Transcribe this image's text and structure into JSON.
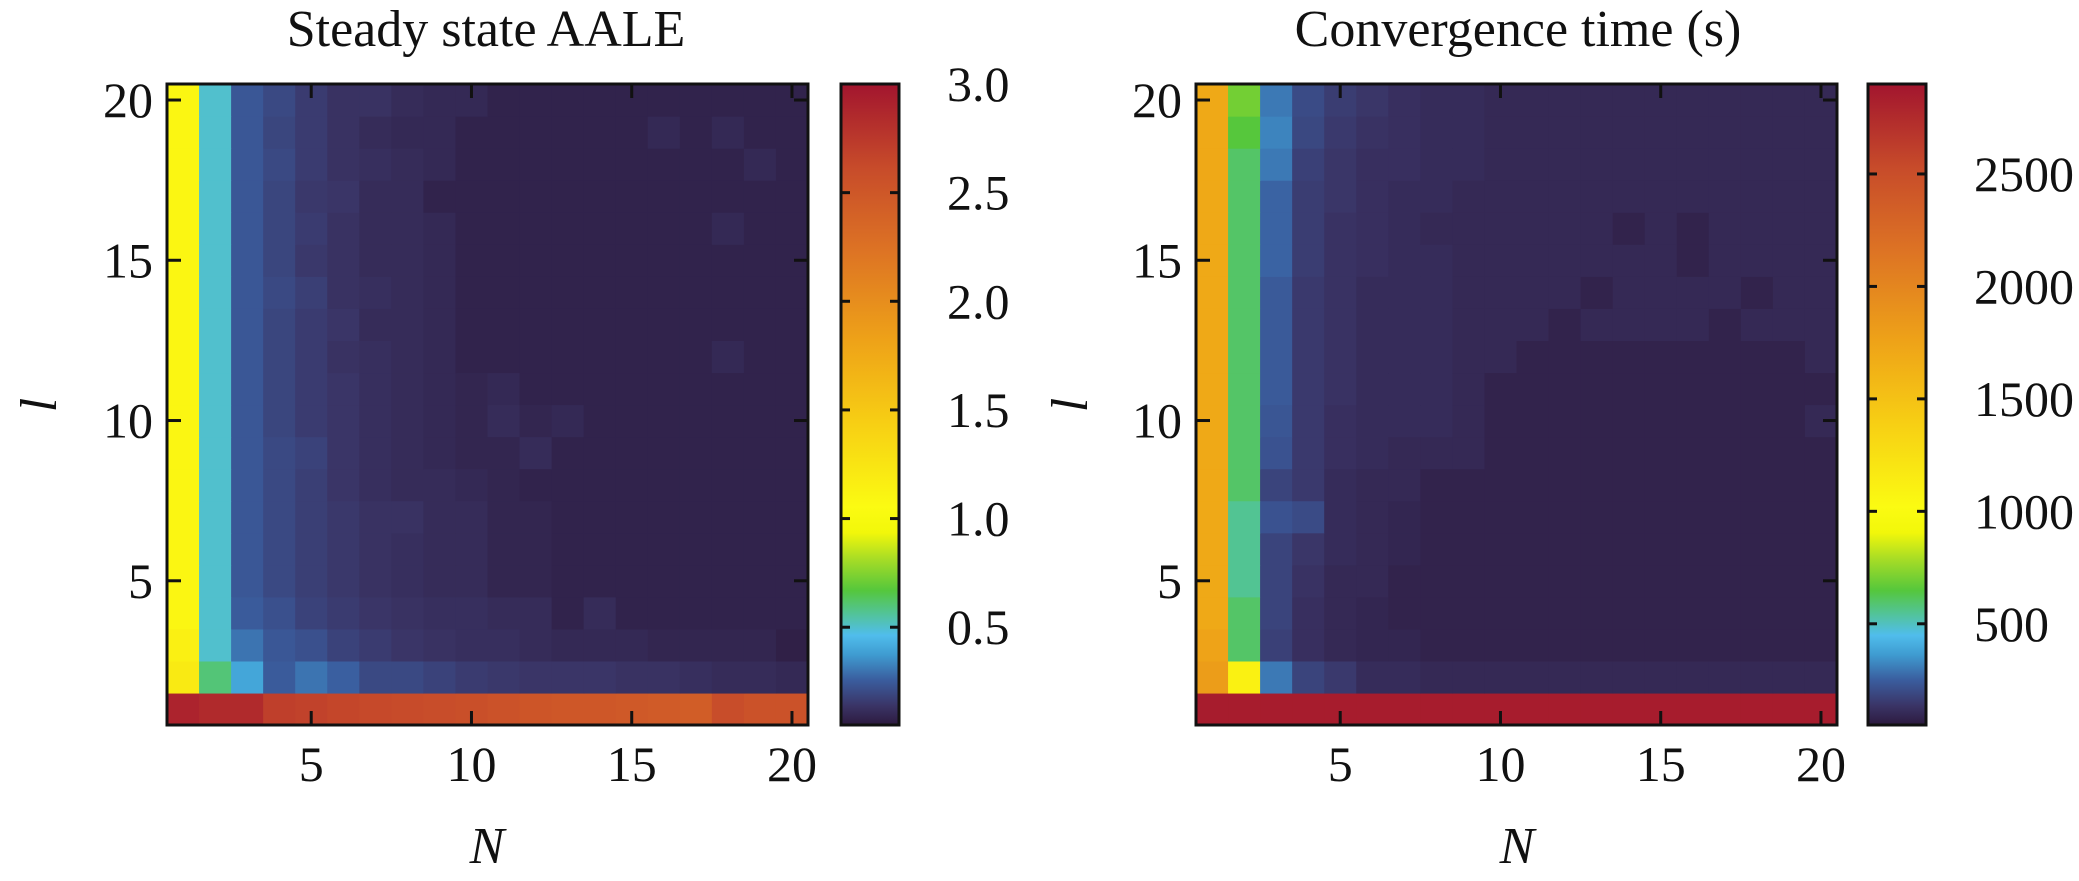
{
  "chart_data": [
    {
      "type": "heatmap",
      "title": "Steady state AALE",
      "xlabel": "N",
      "ylabel": "l",
      "x_range": [
        1,
        20
      ],
      "y_range": [
        1,
        20
      ],
      "x_ticks": [
        5,
        10,
        15,
        20
      ],
      "x_tick_labels": [
        "5",
        "10",
        "15",
        "20"
      ],
      "y_ticks": [
        5,
        10,
        15,
        20
      ],
      "y_tick_labels": [
        "5",
        "10",
        "15",
        "20"
      ],
      "colorbar": {
        "min": 0.05,
        "max": 3.0,
        "ticks": [
          0.5,
          1.0,
          1.5,
          2.0,
          2.5,
          3.0
        ],
        "tick_labels": [
          "0.5",
          "1.0",
          "1.5",
          "2.0",
          "2.5",
          "3.0"
        ]
      },
      "grid": false,
      "values_note": "rows indexed by l = 1..20 (first row is l = 1), columns by N = 1..20",
      "values": [
        [
          2.9,
          2.85,
          2.85,
          2.7,
          2.68,
          2.65,
          2.63,
          2.62,
          2.6,
          2.58,
          2.55,
          2.52,
          2.5,
          2.5,
          2.48,
          2.46,
          2.44,
          2.6,
          2.55,
          2.55
        ],
        [
          1.2,
          0.6,
          0.4,
          0.25,
          0.3,
          0.26,
          0.2,
          0.2,
          0.18,
          0.16,
          0.15,
          0.14,
          0.14,
          0.14,
          0.13,
          0.13,
          0.12,
          0.11,
          0.11,
          0.1
        ],
        [
          1.15,
          0.5,
          0.3,
          0.24,
          0.22,
          0.18,
          0.16,
          0.14,
          0.13,
          0.12,
          0.12,
          0.11,
          0.1,
          0.1,
          0.1,
          0.09,
          0.09,
          0.09,
          0.09,
          0.07
        ],
        [
          1.1,
          0.5,
          0.25,
          0.22,
          0.18,
          0.16,
          0.14,
          0.13,
          0.12,
          0.12,
          0.11,
          0.11,
          0.08,
          0.11,
          0.08,
          0.08,
          0.08,
          0.08,
          0.08,
          0.08
        ],
        [
          1.1,
          0.5,
          0.24,
          0.2,
          0.17,
          0.15,
          0.13,
          0.12,
          0.11,
          0.11,
          0.09,
          0.09,
          0.08,
          0.08,
          0.08,
          0.08,
          0.08,
          0.08,
          0.08,
          0.08
        ],
        [
          1.1,
          0.5,
          0.24,
          0.2,
          0.17,
          0.15,
          0.13,
          0.12,
          0.11,
          0.11,
          0.09,
          0.09,
          0.08,
          0.08,
          0.08,
          0.08,
          0.08,
          0.08,
          0.08,
          0.08
        ],
        [
          1.1,
          0.5,
          0.24,
          0.2,
          0.17,
          0.15,
          0.13,
          0.13,
          0.11,
          0.11,
          0.09,
          0.09,
          0.08,
          0.08,
          0.08,
          0.08,
          0.08,
          0.08,
          0.08,
          0.08
        ],
        [
          1.1,
          0.5,
          0.24,
          0.2,
          0.17,
          0.14,
          0.12,
          0.11,
          0.11,
          0.1,
          0.09,
          0.08,
          0.08,
          0.08,
          0.08,
          0.08,
          0.08,
          0.08,
          0.08,
          0.08
        ],
        [
          1.1,
          0.5,
          0.24,
          0.2,
          0.18,
          0.14,
          0.12,
          0.11,
          0.1,
          0.09,
          0.09,
          0.11,
          0.08,
          0.08,
          0.08,
          0.08,
          0.08,
          0.08,
          0.08,
          0.08
        ],
        [
          1.1,
          0.5,
          0.24,
          0.19,
          0.16,
          0.14,
          0.12,
          0.11,
          0.1,
          0.09,
          0.11,
          0.09,
          0.1,
          0.08,
          0.08,
          0.08,
          0.08,
          0.08,
          0.08,
          0.08
        ],
        [
          1.1,
          0.5,
          0.24,
          0.19,
          0.16,
          0.14,
          0.12,
          0.11,
          0.1,
          0.09,
          0.1,
          0.08,
          0.08,
          0.08,
          0.08,
          0.08,
          0.08,
          0.08,
          0.08,
          0.08
        ],
        [
          1.1,
          0.5,
          0.24,
          0.19,
          0.16,
          0.13,
          0.12,
          0.11,
          0.1,
          0.08,
          0.08,
          0.08,
          0.08,
          0.08,
          0.08,
          0.08,
          0.08,
          0.1,
          0.08,
          0.08
        ],
        [
          1.1,
          0.5,
          0.24,
          0.19,
          0.16,
          0.14,
          0.11,
          0.11,
          0.1,
          0.08,
          0.08,
          0.08,
          0.08,
          0.08,
          0.08,
          0.08,
          0.08,
          0.08,
          0.08,
          0.08
        ],
        [
          1.1,
          0.5,
          0.24,
          0.2,
          0.17,
          0.13,
          0.12,
          0.11,
          0.1,
          0.08,
          0.08,
          0.08,
          0.08,
          0.08,
          0.08,
          0.08,
          0.08,
          0.08,
          0.08,
          0.08
        ],
        [
          1.1,
          0.5,
          0.24,
          0.19,
          0.15,
          0.13,
          0.11,
          0.11,
          0.1,
          0.08,
          0.08,
          0.08,
          0.08,
          0.08,
          0.08,
          0.08,
          0.08,
          0.08,
          0.08,
          0.08
        ],
        [
          1.1,
          0.5,
          0.24,
          0.19,
          0.16,
          0.13,
          0.11,
          0.11,
          0.1,
          0.08,
          0.08,
          0.08,
          0.08,
          0.08,
          0.08,
          0.08,
          0.08,
          0.1,
          0.08,
          0.08
        ],
        [
          1.1,
          0.5,
          0.24,
          0.19,
          0.15,
          0.14,
          0.11,
          0.11,
          0.08,
          0.08,
          0.08,
          0.08,
          0.08,
          0.08,
          0.08,
          0.08,
          0.08,
          0.08,
          0.08,
          0.08
        ],
        [
          1.1,
          0.5,
          0.24,
          0.2,
          0.16,
          0.13,
          0.12,
          0.11,
          0.1,
          0.08,
          0.08,
          0.08,
          0.08,
          0.08,
          0.08,
          0.08,
          0.08,
          0.08,
          0.1,
          0.08
        ],
        [
          1.1,
          0.5,
          0.24,
          0.19,
          0.16,
          0.13,
          0.11,
          0.1,
          0.1,
          0.08,
          0.08,
          0.08,
          0.08,
          0.08,
          0.08,
          0.1,
          0.08,
          0.1,
          0.08,
          0.08
        ],
        [
          1.1,
          0.5,
          0.24,
          0.2,
          0.16,
          0.13,
          0.13,
          0.11,
          0.1,
          0.1,
          0.08,
          0.08,
          0.08,
          0.08,
          0.08,
          0.08,
          0.08,
          0.08,
          0.08,
          0.08
        ]
      ]
    },
    {
      "type": "heatmap",
      "title": "Convergence time (s)",
      "xlabel": "N",
      "ylabel": "l",
      "x_range": [
        1,
        20
      ],
      "y_range": [
        1,
        20
      ],
      "x_ticks": [
        5,
        10,
        15,
        20
      ],
      "x_tick_labels": [
        "5",
        "10",
        "15",
        "20"
      ],
      "y_ticks": [
        5,
        10,
        15,
        20
      ],
      "y_tick_labels": [
        "5",
        "10",
        "15",
        "20"
      ],
      "colorbar": {
        "min": 50,
        "max": 2900,
        "ticks": [
          500,
          1000,
          1500,
          2000,
          2500
        ],
        "tick_labels": [
          "500",
          "1000",
          "1500",
          "2000",
          "2500"
        ]
      },
      "grid": false,
      "values_note": "rows indexed by l = 1..20 (first row is l = 1), columns by N = 1..20",
      "values": [
        [
          2850,
          2850,
          2850,
          2850,
          2850,
          2850,
          2850,
          2850,
          2850,
          2850,
          2850,
          2850,
          2850,
          2850,
          2850,
          2850,
          2850,
          2850,
          2850,
          2850
        ],
        [
          1800,
          1100,
          300,
          180,
          150,
          110,
          110,
          100,
          100,
          100,
          100,
          100,
          100,
          100,
          100,
          100,
          100,
          100,
          100,
          100
        ],
        [
          1750,
          600,
          170,
          120,
          100,
          90,
          90,
          80,
          80,
          80,
          80,
          80,
          80,
          80,
          80,
          80,
          80,
          80,
          80,
          80
        ],
        [
          1700,
          600,
          180,
          120,
          100,
          90,
          80,
          80,
          80,
          80,
          80,
          80,
          80,
          80,
          80,
          80,
          80,
          80,
          80,
          80
        ],
        [
          1700,
          550,
          180,
          130,
          100,
          100,
          80,
          80,
          80,
          80,
          80,
          80,
          80,
          80,
          80,
          80,
          80,
          80,
          80,
          80
        ],
        [
          1700,
          550,
          180,
          140,
          110,
          100,
          90,
          80,
          80,
          80,
          80,
          80,
          80,
          80,
          80,
          80,
          80,
          80,
          80,
          80
        ],
        [
          1700,
          550,
          220,
          200,
          110,
          100,
          90,
          80,
          80,
          80,
          80,
          80,
          80,
          80,
          80,
          80,
          80,
          80,
          80,
          80
        ],
        [
          1700,
          600,
          180,
          150,
          110,
          100,
          100,
          80,
          80,
          80,
          80,
          80,
          80,
          80,
          80,
          80,
          80,
          80,
          80,
          80
        ],
        [
          1700,
          600,
          220,
          150,
          120,
          110,
          100,
          100,
          100,
          80,
          80,
          80,
          80,
          80,
          80,
          80,
          80,
          80,
          80,
          80
        ],
        [
          1700,
          600,
          230,
          150,
          120,
          110,
          110,
          110,
          100,
          80,
          80,
          80,
          80,
          80,
          80,
          80,
          80,
          80,
          80,
          100
        ],
        [
          1700,
          600,
          240,
          150,
          130,
          110,
          110,
          110,
          100,
          80,
          80,
          80,
          80,
          80,
          80,
          80,
          80,
          80,
          80,
          80
        ],
        [
          1700,
          600,
          240,
          150,
          130,
          110,
          110,
          110,
          100,
          100,
          80,
          80,
          80,
          80,
          80,
          80,
          80,
          80,
          80,
          100
        ],
        [
          1700,
          600,
          240,
          150,
          130,
          110,
          110,
          110,
          100,
          100,
          100,
          80,
          100,
          100,
          100,
          100,
          80,
          100,
          100,
          100
        ],
        [
          1700,
          600,
          240,
          150,
          130,
          110,
          110,
          110,
          100,
          100,
          100,
          100,
          80,
          100,
          100,
          100,
          100,
          80,
          100,
          100
        ],
        [
          1700,
          600,
          260,
          160,
          130,
          120,
          110,
          110,
          100,
          100,
          100,
          100,
          100,
          100,
          100,
          80,
          100,
          100,
          100,
          100
        ],
        [
          1700,
          600,
          260,
          160,
          130,
          120,
          110,
          100,
          100,
          100,
          100,
          100,
          100,
          80,
          100,
          80,
          100,
          100,
          100,
          100
        ],
        [
          1700,
          600,
          260,
          160,
          140,
          120,
          110,
          110,
          100,
          100,
          100,
          100,
          100,
          100,
          100,
          100,
          100,
          100,
          100,
          100
        ],
        [
          1700,
          600,
          300,
          170,
          140,
          120,
          120,
          110,
          110,
          100,
          100,
          100,
          100,
          100,
          100,
          100,
          100,
          100,
          100,
          100
        ],
        [
          1700,
          650,
          320,
          190,
          150,
          130,
          120,
          110,
          110,
          100,
          100,
          100,
          100,
          100,
          100,
          100,
          100,
          100,
          100,
          100
        ],
        [
          1700,
          700,
          300,
          200,
          160,
          140,
          120,
          110,
          110,
          100,
          100,
          100,
          100,
          100,
          100,
          100,
          100,
          100,
          100,
          100
        ]
      ]
    }
  ]
}
